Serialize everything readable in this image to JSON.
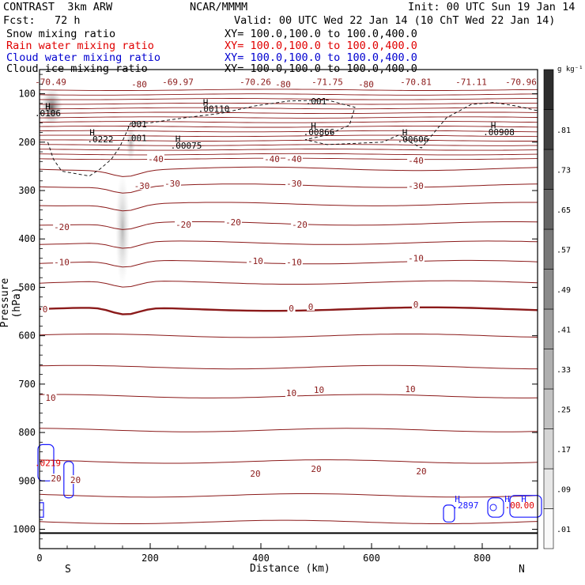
{
  "header": {
    "model": "CONTRAST  3km ARW",
    "org": "NCAR/MMMM",
    "init": "Init: 00 UTC Sun 19 Jan 14",
    "fcst": "Fcst:   72 h",
    "valid": "Valid: 00 UTC Wed 22 Jan 14 (10 ChT Wed 22 Jan 14)"
  },
  "legend_rows": [
    {
      "label": "Snow mixing ratio",
      "xy": "XY= 100.0,100.0 to 100.0,400.0",
      "color": "#000000"
    },
    {
      "label": "Rain water mixing ratio",
      "xy": "XY= 100.0,100.0 to 100.0,400.0",
      "color": "#e00000"
    },
    {
      "label": "Cloud water mixing ratio",
      "xy": "XY= 100.0,100.0 to 100.0,400.0",
      "color": "#0000d0"
    },
    {
      "label": "Cloud ice mixing ratio",
      "xy": "XY= 100.0,100.0 to 100.0,400.0",
      "color": "#000000"
    }
  ],
  "colors": {
    "temperature_contour": "#8b1a1a",
    "cloud_water": "#1a1aff",
    "rain_water": "#e00000",
    "snow_shade": "#bdbdbd"
  },
  "chart_data": {
    "type": "contour",
    "xlabel": "Distance (km)",
    "ylabel": "Pressure (hPa)",
    "xlim": [
      0,
      900
    ],
    "ylim": [
      1040,
      50
    ],
    "x_ticks": [
      0,
      200,
      400,
      600,
      800
    ],
    "y_ticks": [
      100,
      200,
      300,
      400,
      500,
      600,
      700,
      800,
      900,
      1000
    ],
    "x_end_labels": {
      "left": "S",
      "right": "N"
    },
    "colorbar": {
      "unit": "g kg⁻¹",
      "levels": [
        ".01",
        ".09",
        ".17",
        ".25",
        ".33",
        ".41",
        ".49",
        ".57",
        ".65",
        ".73",
        ".81"
      ]
    },
    "temperature_contours": {
      "levels": [
        -80,
        -70,
        -60,
        -50,
        -40,
        -30,
        -20,
        -10,
        0,
        10,
        20
      ],
      "labels": [
        {
          "text": "-70.49",
          "x": 20,
          "p": 75
        },
        {
          "text": "-80",
          "x": 180,
          "p": 80
        },
        {
          "text": "-69.97",
          "x": 250,
          "p": 75
        },
        {
          "text": "-70.26",
          "x": 390,
          "p": 75
        },
        {
          "text": "-80",
          "x": 440,
          "p": 80
        },
        {
          "text": "-71.75",
          "x": 520,
          "p": 75
        },
        {
          "text": "-80",
          "x": 590,
          "p": 80
        },
        {
          "text": "-70.81",
          "x": 680,
          "p": 75
        },
        {
          "text": "-71.11",
          "x": 780,
          "p": 75
        },
        {
          "text": "-70.96",
          "x": 870,
          "p": 75
        },
        {
          "text": "-40",
          "x": 210,
          "p": 235
        },
        {
          "text": "-40",
          "x": 420,
          "p": 235
        },
        {
          "text": "-40",
          "x": 460,
          "p": 235
        },
        {
          "text": "-40",
          "x": 680,
          "p": 238
        },
        {
          "text": "-30",
          "x": 185,
          "p": 290
        },
        {
          "text": "-30",
          "x": 240,
          "p": 285
        },
        {
          "text": "-30",
          "x": 460,
          "p": 285
        },
        {
          "text": "-30",
          "x": 680,
          "p": 290
        },
        {
          "text": "-20",
          "x": 40,
          "p": 375
        },
        {
          "text": "-20",
          "x": 260,
          "p": 370
        },
        {
          "text": "-20",
          "x": 350,
          "p": 365
        },
        {
          "text": "-20",
          "x": 470,
          "p": 370
        },
        {
          "text": "-10",
          "x": 40,
          "p": 448
        },
        {
          "text": "-10",
          "x": 390,
          "p": 445
        },
        {
          "text": "-10",
          "x": 460,
          "p": 448
        },
        {
          "text": "-10",
          "x": 680,
          "p": 440
        },
        {
          "text": "0",
          "x": 10,
          "p": 545
        },
        {
          "text": "0",
          "x": 455,
          "p": 543
        },
        {
          "text": "0",
          "x": 490,
          "p": 540
        },
        {
          "text": "0",
          "x": 680,
          "p": 535
        },
        {
          "text": "10",
          "x": 20,
          "p": 728
        },
        {
          "text": "10",
          "x": 455,
          "p": 718
        },
        {
          "text": "10",
          "x": 505,
          "p": 712
        },
        {
          "text": "10",
          "x": 670,
          "p": 710
        },
        {
          "text": "20",
          "x": 30,
          "p": 895
        },
        {
          "text": "20",
          "x": 65,
          "p": 898
        },
        {
          "text": "20",
          "x": 390,
          "p": 885
        },
        {
          "text": "20",
          "x": 500,
          "p": 875
        },
        {
          "text": "20",
          "x": 690,
          "p": 880
        }
      ]
    },
    "annotations": [
      {
        "text": ".001",
        "x": 500,
        "p": 115,
        "color": "#000000"
      },
      {
        "text": "H",
        "x": 15,
        "p": 126,
        "color": "#000000"
      },
      {
        "text": ".0106",
        "x": 15,
        "p": 140,
        "color": "#000000"
      },
      {
        "text": "H",
        "x": 300,
        "p": 118,
        "color": "#000000"
      },
      {
        "text": ".00110",
        "x": 315,
        "p": 131,
        "color": "#000000"
      },
      {
        "text": ".001",
        "x": 175,
        "p": 163,
        "color": "#000000"
      },
      {
        "text": "H",
        "x": 495,
        "p": 166,
        "color": "#000000"
      },
      {
        "text": ".00866",
        "x": 505,
        "p": 179,
        "color": "#000000"
      },
      {
        "text": "H",
        "x": 820,
        "p": 165,
        "color": "#000000"
      },
      {
        "text": ".00908",
        "x": 830,
        "p": 179,
        "color": "#000000"
      },
      {
        "text": "H",
        "x": 95,
        "p": 180,
        "color": "#000000"
      },
      {
        "text": ".0222",
        "x": 110,
        "p": 194,
        "color": "#000000"
      },
      {
        "text": ".001",
        "x": 175,
        "p": 191,
        "color": "#000000"
      },
      {
        "text": "H",
        "x": 660,
        "p": 180,
        "color": "#000000"
      },
      {
        "text": ".00606",
        "x": 675,
        "p": 194,
        "color": "#000000"
      },
      {
        "text": "H",
        "x": 250,
        "p": 193,
        "color": "#000000"
      },
      {
        "text": ".00075",
        "x": 265,
        "p": 207,
        "color": "#000000"
      },
      {
        "text": "H",
        "x": 755,
        "p": 937,
        "color": "#1a1aff"
      },
      {
        "text": ".2897",
        "x": 770,
        "p": 950,
        "color": "#1a1aff"
      },
      {
        "text": ".0219",
        "x": 15,
        "p": 863,
        "color": "#e00000"
      },
      {
        "text": "H",
        "x": 845,
        "p": 937,
        "color": "#1a1aff"
      },
      {
        "text": "H",
        "x": 875,
        "p": 937,
        "color": "#1a1aff"
      },
      {
        "text": ".00",
        "x": 855,
        "p": 950,
        "color": "#e00000"
      },
      {
        "text": ".00",
        "x": 880,
        "p": 950,
        "color": "#e00000"
      }
    ]
  }
}
